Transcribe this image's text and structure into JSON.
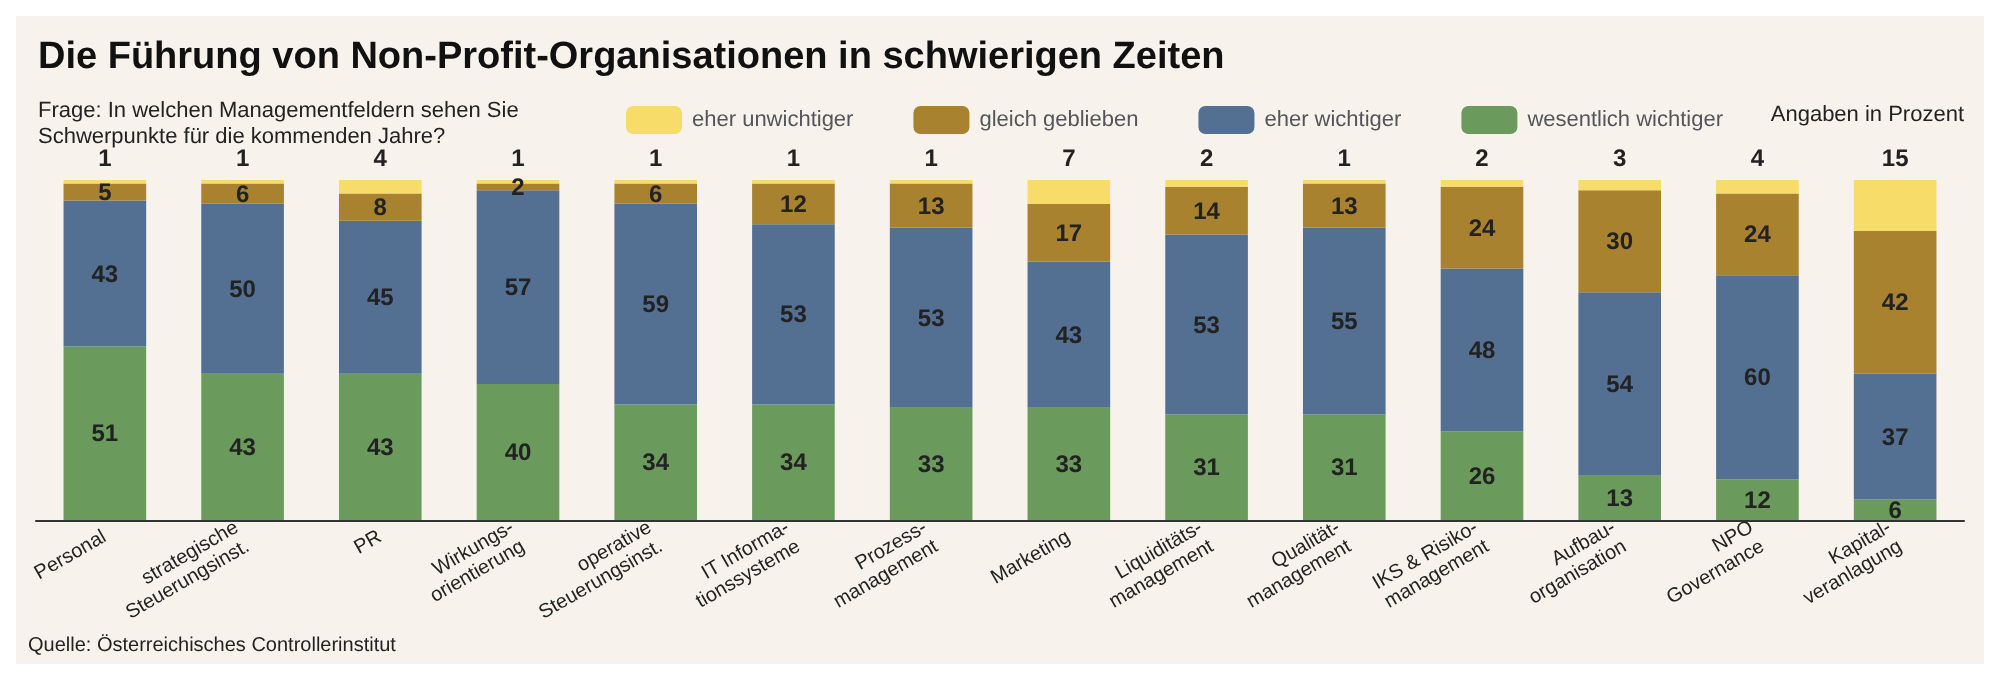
{
  "chart_data": {
    "type": "bar",
    "title": "Die Führung von Non-Profit-Organisationen in schwierigen Zeiten",
    "subtitle": "Frage: In welchen Managementfeldern sehen Sie\nSchwerpunkte für die kommenden Jahre?",
    "annotations": [
      "Angaben in Prozent",
      "Quelle: Österreichisches Controllerinstitut"
    ],
    "stacked": true,
    "ylim": [
      0,
      100
    ],
    "tick_labels": "x",
    "data_labels": true,
    "legend": "top",
    "categories": [
      "Personal",
      "strategische\nSteuerungsinst.",
      "PR",
      "Wirkungs-\norientierung",
      "operative\nSteuerungsinst.",
      "IT Informa-\ntionssysteme",
      "Prozess-\nmanagement",
      "Marketing",
      "Liquiditäts-\nmanagement",
      "Qualität-\nmanagement",
      "IKS & Risiko-\nmanagement",
      "Aufbau-\norganisation",
      "NPO\nGovernance",
      "Kapital-\nveranlagung"
    ],
    "series": [
      {
        "name": "wesentlich wichtiger",
        "color": "#6a9a5c",
        "values": [
          51,
          43,
          43,
          40,
          34,
          34,
          33,
          33,
          31,
          31,
          26,
          13,
          12,
          6
        ]
      },
      {
        "name": "eher wichtiger",
        "color": "#536f92",
        "values": [
          43,
          50,
          45,
          57,
          59,
          53,
          53,
          43,
          53,
          55,
          48,
          54,
          60,
          37
        ]
      },
      {
        "name": "gleich geblieben",
        "color": "#a8822e",
        "values": [
          5,
          6,
          8,
          2,
          6,
          12,
          13,
          17,
          14,
          13,
          24,
          30,
          24,
          42
        ]
      },
      {
        "name": "eher unwichtiger",
        "color": "#f7dc6a",
        "values": [
          1,
          1,
          4,
          1,
          1,
          1,
          1,
          7,
          2,
          1,
          2,
          3,
          4,
          15
        ]
      }
    ]
  }
}
